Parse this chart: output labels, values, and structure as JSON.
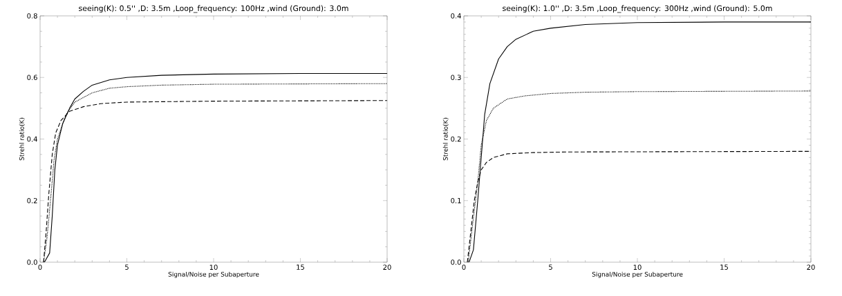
{
  "chart_data": [
    {
      "type": "line",
      "title": "seeing(K): 0.5''  ,D: 3.5m  ,Loop_frequency: 100Hz ,wind (Ground): 3.0m",
      "xlabel": "Signal/Noise per Subaperture",
      "ylabel": "Strehl ratio(K)",
      "xlim": [
        0,
        20
      ],
      "ylim": [
        0,
        0.8
      ],
      "xticks": [
        0,
        5,
        10,
        15,
        20
      ],
      "yticks": [
        {
          "value": 0,
          "label": "0.0"
        },
        {
          "value": 0.2,
          "label": "0.2"
        },
        {
          "value": 0.4,
          "label": "0.4"
        },
        {
          "value": 0.6,
          "label": "0.6"
        },
        {
          "value": 0.8,
          "label": "0.8"
        }
      ],
      "series": [
        {
          "color": "#000000",
          "line_style": "solid",
          "x": [
            0.25,
            0.55,
            0.7,
            0.85,
            1.0,
            1.3,
            1.7,
            2,
            2.5,
            3,
            4,
            5,
            7,
            10,
            15,
            20
          ],
          "values": [
            0,
            0.03,
            0.15,
            0.3,
            0.38,
            0.45,
            0.5,
            0.53,
            0.555,
            0.575,
            0.592,
            0.6,
            0.607,
            0.611,
            0.613,
            0.613
          ]
        },
        {
          "color": "#000000",
          "line_style": "dotted",
          "x": [
            0.2,
            0.4,
            0.6,
            0.8,
            1.0,
            1.5,
            2,
            3,
            4,
            5,
            7,
            10,
            20
          ],
          "values": [
            0,
            0.08,
            0.2,
            0.33,
            0.4,
            0.48,
            0.52,
            0.55,
            0.565,
            0.57,
            0.575,
            0.578,
            0.58
          ]
        },
        {
          "color": "#000000",
          "line_style": "dashed",
          "x": [
            0.2,
            0.35,
            0.5,
            0.7,
            0.9,
            1.2,
            1.7,
            2.5,
            3.5,
            5,
            10,
            20
          ],
          "values": [
            0,
            0.1,
            0.22,
            0.35,
            0.42,
            0.46,
            0.49,
            0.505,
            0.515,
            0.52,
            0.523,
            0.525
          ]
        }
      ]
    },
    {
      "type": "line",
      "title": "seeing(K): 1.0''  ,D: 3.5m  ,Loop_frequency: 300Hz ,wind (Ground): 5.0m",
      "xlabel": "Signal/Noise per Subaperture",
      "ylabel": "Strehl ratio(K)",
      "xlim": [
        0,
        20
      ],
      "ylim": [
        0,
        0.4
      ],
      "xticks": [
        0,
        5,
        10,
        15,
        20
      ],
      "yticks": [
        {
          "value": 0,
          "label": "0.0"
        },
        {
          "value": 0.1,
          "label": "0.1"
        },
        {
          "value": 0.2,
          "label": "0.2"
        },
        {
          "value": 0.3,
          "label": "0.3"
        },
        {
          "value": 0.4,
          "label": "0.4"
        }
      ],
      "series": [
        {
          "color": "#000000",
          "line_style": "solid",
          "x": [
            0.3,
            0.55,
            0.8,
            1.0,
            1.2,
            1.5,
            2,
            2.5,
            3,
            4,
            5,
            7,
            10,
            15,
            20
          ],
          "values": [
            0,
            0.02,
            0.1,
            0.17,
            0.24,
            0.29,
            0.33,
            0.35,
            0.362,
            0.375,
            0.38,
            0.386,
            0.389,
            0.39,
            0.39
          ]
        },
        {
          "color": "#000000",
          "line_style": "dotted",
          "x": [
            0.25,
            0.5,
            0.8,
            1.0,
            1.3,
            1.7,
            2.5,
            3.5,
            5,
            7,
            10,
            20
          ],
          "values": [
            0,
            0.06,
            0.13,
            0.19,
            0.23,
            0.25,
            0.265,
            0.27,
            0.274,
            0.276,
            0.277,
            0.278
          ]
        },
        {
          "color": "#000000",
          "line_style": "dashed",
          "x": [
            0.2,
            0.4,
            0.6,
            0.8,
            1.0,
            1.3,
            1.7,
            2.5,
            4,
            6,
            20
          ],
          "values": [
            0,
            0.05,
            0.1,
            0.13,
            0.15,
            0.162,
            0.17,
            0.176,
            0.178,
            0.179,
            0.18
          ]
        }
      ]
    }
  ]
}
